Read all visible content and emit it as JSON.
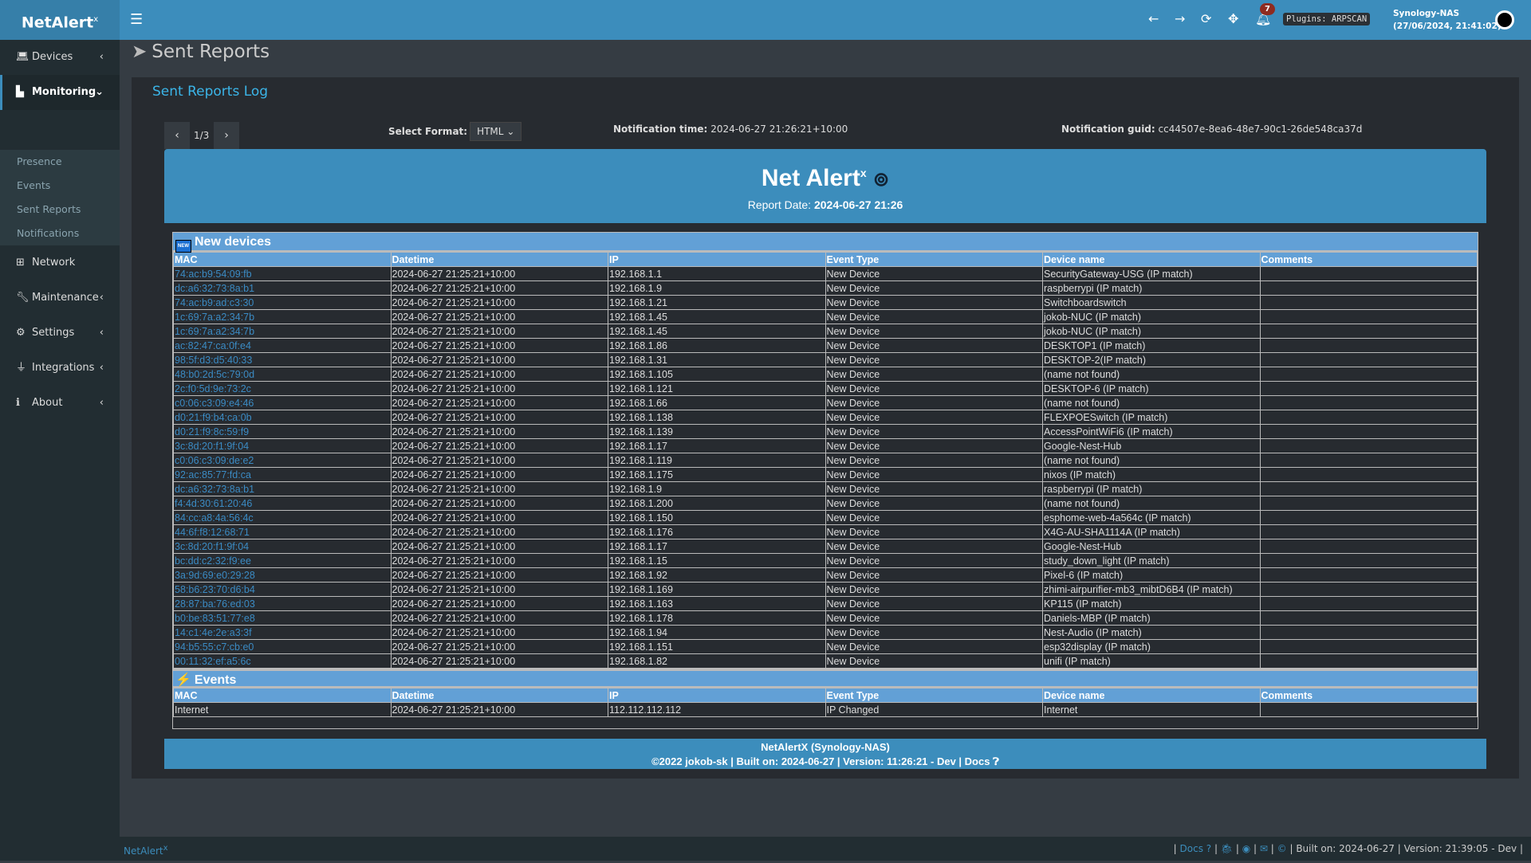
{
  "app": {
    "logo": "NetAlert",
    "logo_sup": "x"
  },
  "topbar": {
    "notification_count": "7",
    "plugins": "Plugins: ARPSCAN",
    "host": "Synology-NAS",
    "datetime": "(27/06/2024, 21:41:02)"
  },
  "sidebar": {
    "items": [
      {
        "label": "Devices",
        "icon": "laptop-icon"
      },
      {
        "label": "Monitoring",
        "icon": "chart-icon"
      },
      {
        "label": "Network",
        "icon": "sitemap-icon"
      },
      {
        "label": "Maintenance",
        "icon": "wrench-icon"
      },
      {
        "label": "Settings",
        "icon": "gear-icon"
      },
      {
        "label": "Integrations",
        "icon": "plug-icon"
      },
      {
        "label": "About",
        "icon": "info-icon"
      }
    ],
    "sub_items": [
      "Presence",
      "Events",
      "Sent Reports",
      "Notifications"
    ]
  },
  "page": {
    "title": "Sent Reports",
    "box_title": "Sent Reports Log",
    "pager": "1/3",
    "format_label": "Select Format:",
    "format_value": "HTML",
    "ntime_label": "Notification time:",
    "ntime": "2024-06-27 21:26:21+10:00",
    "nguid_label": "Notification guid:",
    "nguid": "cc44507e-8ea6-48e7-90c1-26de548ca37d"
  },
  "report": {
    "title": "Net Alert",
    "title_sup": "x",
    "date_label": "Report Date:",
    "date": "2024-06-27 21:26",
    "columns": [
      "MAC",
      "Datetime",
      "IP",
      "Event Type",
      "Device name",
      "Comments"
    ],
    "new_devices_title": "New devices",
    "new_badge": "NEW",
    "new_devices": [
      [
        "74:ac:b9:54:09:fb",
        "2024-06-27 21:25:21+10:00",
        "192.168.1.1",
        "New Device",
        "SecurityGateway-USG (IP match)",
        ""
      ],
      [
        "dc:a6:32:73:8a:b1",
        "2024-06-27 21:25:21+10:00",
        "192.168.1.9",
        "New Device",
        "raspberrypi (IP match)",
        ""
      ],
      [
        "74:ac:b9:ad:c3:30",
        "2024-06-27 21:25:21+10:00",
        "192.168.1.21",
        "New Device",
        "Switchboardswitch",
        ""
      ],
      [
        "1c:69:7a:a2:34:7b",
        "2024-06-27 21:25:21+10:00",
        "192.168.1.45",
        "New Device",
        "jokob-NUC (IP match)",
        ""
      ],
      [
        "1c:69:7a:a2:34:7b",
        "2024-06-27 21:25:21+10:00",
        "192.168.1.45",
        "New Device",
        "jokob-NUC (IP match)",
        ""
      ],
      [
        "ac:82:47:ca:0f:e4",
        "2024-06-27 21:25:21+10:00",
        "192.168.1.86",
        "New Device",
        "DESKTOP1 (IP match)",
        ""
      ],
      [
        "98:5f:d3:d5:40:33",
        "2024-06-27 21:25:21+10:00",
        "192.168.1.31",
        "New Device",
        "DESKTOP-2(IP match)",
        ""
      ],
      [
        "48:b0:2d:5c:79:0d",
        "2024-06-27 21:25:21+10:00",
        "192.168.1.105",
        "New Device",
        "(name not found)",
        ""
      ],
      [
        "2c:f0:5d:9e:73:2c",
        "2024-06-27 21:25:21+10:00",
        "192.168.1.121",
        "New Device",
        "DESKTOP-6 (IP match)",
        ""
      ],
      [
        "c0:06:c3:09:e4:46",
        "2024-06-27 21:25:21+10:00",
        "192.168.1.66",
        "New Device",
        "(name not found)",
        ""
      ],
      [
        "d0:21:f9:b4:ca:0b",
        "2024-06-27 21:25:21+10:00",
        "192.168.1.138",
        "New Device",
        "FLEXPOESwitch (IP match)",
        ""
      ],
      [
        "d0:21:f9:8c:59:f9",
        "2024-06-27 21:25:21+10:00",
        "192.168.1.139",
        "New Device",
        "AccessPointWiFi6 (IP match)",
        ""
      ],
      [
        "3c:8d:20:f1:9f:04",
        "2024-06-27 21:25:21+10:00",
        "192.168.1.17",
        "New Device",
        "Google-Nest-Hub",
        ""
      ],
      [
        "c0:06:c3:09:de:e2",
        "2024-06-27 21:25:21+10:00",
        "192.168.1.119",
        "New Device",
        "(name not found)",
        ""
      ],
      [
        "92:ac:85:77:fd:ca",
        "2024-06-27 21:25:21+10:00",
        "192.168.1.175",
        "New Device",
        "nixos (IP match)",
        ""
      ],
      [
        "dc:a6:32:73:8a:b1",
        "2024-06-27 21:25:21+10:00",
        "192.168.1.9",
        "New Device",
        "raspberrypi (IP match)",
        ""
      ],
      [
        "f4:4d:30:61:20:46",
        "2024-06-27 21:25:21+10:00",
        "192.168.1.200",
        "New Device",
        "(name not found)",
        ""
      ],
      [
        "84:cc:a8:4a:56:4c",
        "2024-06-27 21:25:21+10:00",
        "192.168.1.150",
        "New Device",
        "esphome-web-4a564c (IP match)",
        ""
      ],
      [
        "44:6f:f8:12:68:71",
        "2024-06-27 21:25:21+10:00",
        "192.168.1.176",
        "New Device",
        "X4G-AU-SHA1114A (IP match)",
        ""
      ],
      [
        "3c:8d:20:f1:9f:04",
        "2024-06-27 21:25:21+10:00",
        "192.168.1.17",
        "New Device",
        "Google-Nest-Hub",
        ""
      ],
      [
        "bc:dd:c2:32:f9:ee",
        "2024-06-27 21:25:21+10:00",
        "192.168.1.15",
        "New Device",
        "study_down_light (IP match)",
        ""
      ],
      [
        "3a:9d:69:e0:29:28",
        "2024-06-27 21:25:21+10:00",
        "192.168.1.92",
        "New Device",
        "Pixel-6 (IP match)",
        ""
      ],
      [
        "58:b6:23:70:d6:b4",
        "2024-06-27 21:25:21+10:00",
        "192.168.1.169",
        "New Device",
        "zhimi-airpurifier-mb3_mibtD6B4 (IP match)",
        ""
      ],
      [
        "28:87:ba:76:ed:03",
        "2024-06-27 21:25:21+10:00",
        "192.168.1.163",
        "New Device",
        "KP115 (IP match)",
        ""
      ],
      [
        "b0:be:83:51:77:e8",
        "2024-06-27 21:25:21+10:00",
        "192.168.1.178",
        "New Device",
        "Daniels-MBP (IP match)",
        ""
      ],
      [
        "14:c1:4e:2e:a3:3f",
        "2024-06-27 21:25:21+10:00",
        "192.168.1.94",
        "New Device",
        "Nest-Audio (IP match)",
        ""
      ],
      [
        "94:b5:55:c7:cb:e0",
        "2024-06-27 21:25:21+10:00",
        "192.168.1.151",
        "New Device",
        "esp32display (IP match)",
        ""
      ],
      [
        "00:11:32:ef:a5:6c",
        "2024-06-27 21:25:21+10:00",
        "192.168.1.82",
        "New Device",
        "unifi (IP match)",
        ""
      ]
    ],
    "events_title": "Events",
    "events": [
      [
        "Internet",
        "2024-06-27 21:25:21+10:00",
        "112.112.112.112",
        "IP Changed",
        "Internet",
        ""
      ]
    ],
    "footer_line1": "NetAlertX (Synology-NAS)",
    "footer_line2": "©2022 jokob-sk | Built on: 2024-06-27 | Version: 11:26:21 - Dev | Docs"
  },
  "footer": {
    "logo": "NetAlert",
    "logo_sup": "x",
    "docs": "Docs",
    "built": "| Built on: 2024-06-27 | Version: 21:39:05 - Dev |"
  }
}
